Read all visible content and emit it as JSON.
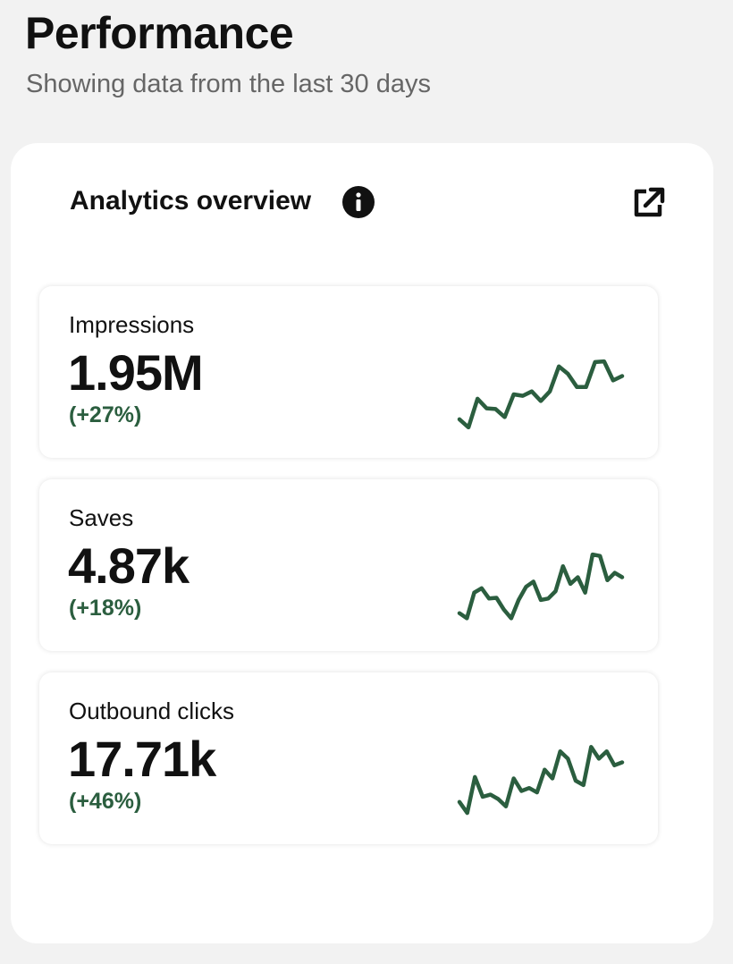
{
  "header": {
    "title": "Performance",
    "subtitle": "Showing data from the last 30 days"
  },
  "panel": {
    "title": "Analytics overview",
    "trend_color": "#2b5e3f",
    "trend_range": [
      0,
      100
    ],
    "metrics": [
      {
        "label": "Impressions",
        "value": "1.95M",
        "change": "(+27%)",
        "trend": [
          16,
          5,
          44,
          31,
          30,
          19,
          50,
          48,
          54,
          41,
          54,
          88,
          78,
          60,
          60,
          94,
          95,
          69,
          75
        ]
      },
      {
        "label": "Saves",
        "value": "4.87k",
        "change": "(+18%)",
        "trend": [
          15,
          8,
          43,
          49,
          35,
          36,
          20,
          8,
          33,
          51,
          58,
          33,
          35,
          45,
          79,
          55,
          64,
          43,
          95,
          93,
          60,
          70,
          64
        ]
      },
      {
        "label": "Outbound clicks",
        "value": "17.71k",
        "change": "(+46%)",
        "trend": [
          21,
          6,
          55,
          28,
          31,
          25,
          15,
          53,
          36,
          40,
          34,
          65,
          53,
          90,
          80,
          50,
          44,
          96,
          80,
          90,
          71,
          75
        ]
      }
    ]
  }
}
